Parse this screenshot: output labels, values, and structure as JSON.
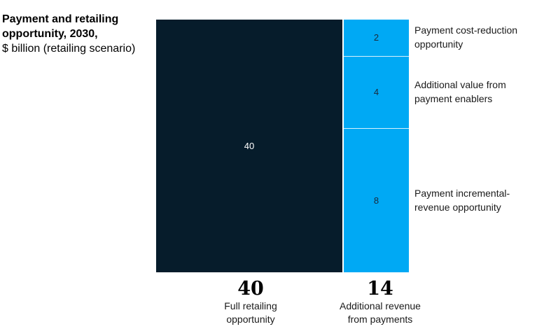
{
  "title": "Payment and retailing opportunity, 2030,",
  "unit": "$ billion (retailing scenario)",
  "colors": {
    "full_retailing": "#061c2b",
    "payments": "#00a9f4",
    "separator": "#d9f1fc"
  },
  "chart_data": {
    "type": "bar",
    "stacked": true,
    "title": "Payment and retailing opportunity, 2030,",
    "ylabel": "$ billion (retailing scenario)",
    "categories": [
      "Full retailing opportunity",
      "Additional revenue from payments"
    ],
    "bars": [
      {
        "category": "Full retailing opportunity",
        "total": "40",
        "label": "Full retailing opportunity",
        "segments": [
          {
            "value": 40,
            "value_label": "40",
            "color": "#061c2b"
          }
        ]
      },
      {
        "category": "Additional revenue from payments",
        "total": "14",
        "label": "Additional revenue from payments",
        "segments": [
          {
            "name": "Payment cost-reduction opportunity",
            "value": 2,
            "value_label": "2",
            "color": "#00a9f4"
          },
          {
            "name": "Additional value from payment enablers",
            "value": 4,
            "value_label": "4",
            "color": "#00a9f4"
          },
          {
            "name": "Payment incremental-revenue opportunity",
            "value": 8,
            "value_label": "8",
            "color": "#00a9f4"
          }
        ]
      }
    ],
    "segment_labels": [
      {
        "line1": "Payment cost-reduction",
        "line2": "opportunity"
      },
      {
        "line1": "Additional value from",
        "line2": "payment enablers"
      },
      {
        "line1": "Payment incremental-",
        "line2": "revenue opportunity"
      }
    ],
    "total_labels": [
      {
        "value": "40",
        "line1": "Full retailing",
        "line2": "opportunity"
      },
      {
        "value": "14",
        "line1": "Additional revenue",
        "line2": "from payments"
      }
    ]
  }
}
